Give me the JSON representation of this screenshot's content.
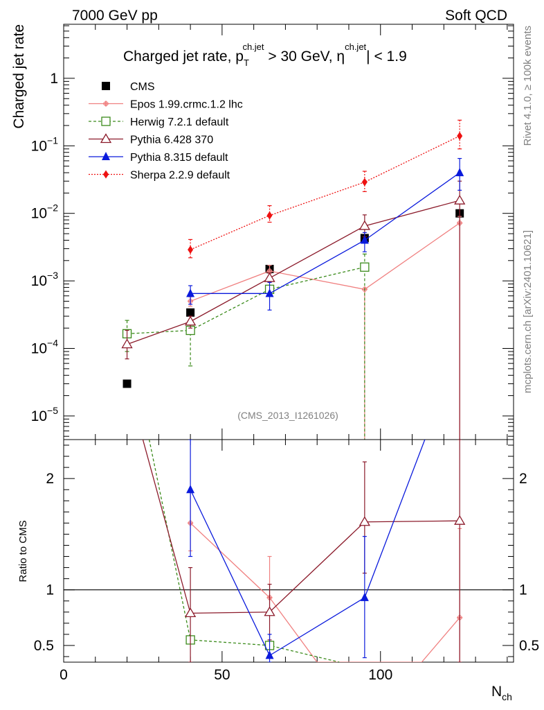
{
  "header": {
    "left": "7000 GeV pp",
    "right": "Soft QCD"
  },
  "side_labels": {
    "top": "Rivet 4.1.0, ≥ 100k events",
    "bottom": "mcplots.cern.ch [arXiv:2401.10621]"
  },
  "chart_data": [
    {
      "type": "line",
      "title": "Charged jet rate, p_T^ch.jet > 30 GeV, |η^ch.jet| < 1.9",
      "title_parts": {
        "a": "Charged jet rate, p",
        "sub": "T",
        "sup": "ch.jet",
        "b": " > 30 GeV,  ",
        "c": "η",
        "sup2": "ch.jet",
        "d": "| < 1.9"
      },
      "ylabel": "Charged jet rate",
      "yscale": "log",
      "xlim": [
        0,
        142
      ],
      "ylim_exponents": [
        -5.35,
        0.8
      ],
      "ytick_labels": [
        {
          "value": 1,
          "base": "1",
          "exp": ""
        },
        {
          "value": 0.1,
          "base": "10",
          "exp": "−1"
        },
        {
          "value": 0.01,
          "base": "10",
          "exp": "−2"
        },
        {
          "value": 0.001,
          "base": "10",
          "exp": "−3"
        },
        {
          "value": 0.0001,
          "base": "10",
          "exp": "−4"
        },
        {
          "value": 1e-05,
          "base": "10",
          "exp": "−5"
        }
      ],
      "watermark": "(CMS_2013_I1261026)",
      "legend_position": "top-left",
      "series": [
        {
          "name": "CMS",
          "color": "#000000",
          "marker": "square-filled",
          "dash": "none",
          "connect": false,
          "x": [
            20,
            40,
            65,
            95,
            125
          ],
          "y": [
            3e-05,
            0.00034,
            0.0015,
            0.0043,
            0.01
          ]
        },
        {
          "name": "Epos 1.99.crmc.1.2 lhc",
          "color": "#f08080",
          "marker": "cross",
          "dash": "none",
          "connect": true,
          "x": [
            40,
            65,
            95,
            125
          ],
          "y": [
            0.0005,
            0.0014,
            0.00075,
            0.0072
          ],
          "err_lo": [
            0.00042,
            0.0011,
            0.0,
            0.0
          ],
          "err_hi": [
            0.00058,
            0.0017,
            0.0,
            0.009
          ]
        },
        {
          "name": "Herwig 7.2.1 default",
          "color": "#3a8a1a",
          "marker": "square-open",
          "dash": "4,3",
          "connect": true,
          "x": [
            20,
            40,
            65,
            95
          ],
          "y": [
            0.000165,
            0.000185,
            0.00075,
            0.0016
          ],
          "err_lo": [
            9e-05,
            5.5e-05,
            0.00065,
            0.0
          ],
          "err_hi": [
            0.00026,
            0.0002,
            0.00085,
            0.0025
          ]
        },
        {
          "name": "Pythia 6.428 370",
          "color": "#8b1a2a",
          "marker": "triangle-open",
          "dash": "none",
          "connect": true,
          "x": [
            20,
            40,
            65,
            95,
            125
          ],
          "y": [
            0.000115,
            0.00025,
            0.0011,
            0.0065,
            0.0155
          ],
          "err_lo": [
            7e-05,
            0.0002,
            0.00095,
            0.0045,
            0.0
          ],
          "err_hi": [
            0.000185,
            0.0003,
            0.0013,
            0.0095,
            0.03
          ]
        },
        {
          "name": "Pythia 8.315 default",
          "color": "#0a1adc",
          "marker": "triangle-filled",
          "dash": "none",
          "connect": true,
          "x": [
            40,
            65,
            95,
            125
          ],
          "y": [
            0.00065,
            0.00065,
            0.004,
            0.04
          ],
          "err_lo": [
            0.00045,
            0.00037,
            0.0027,
            0.022
          ],
          "err_hi": [
            0.00085,
            0.00095,
            0.0052,
            0.065
          ]
        },
        {
          "name": "Sherpa 2.2.9 default",
          "color": "#ee1111",
          "marker": "diamond",
          "dash": "2,2",
          "connect": true,
          "x": [
            40,
            65,
            95,
            125
          ],
          "y": [
            0.0029,
            0.0093,
            0.029,
            0.14
          ],
          "err_lo": [
            0.0022,
            0.0074,
            0.021,
            0.09
          ],
          "err_hi": [
            0.0041,
            0.013,
            0.042,
            0.24
          ]
        }
      ]
    },
    {
      "type": "line",
      "ylabel": "Ratio to CMS",
      "xlabel": "N",
      "xlabel_sub": "ch",
      "xlim": [
        0,
        142
      ],
      "ylim": [
        0.35,
        2.35
      ],
      "xtick_labels": [
        {
          "value": 0,
          "label": "0"
        },
        {
          "value": 50,
          "label": "50"
        },
        {
          "value": 100,
          "label": "100"
        }
      ],
      "ytick_labels": [
        {
          "value": 0.5,
          "label": "0.5"
        },
        {
          "value": 1,
          "label": "1"
        },
        {
          "value": 2,
          "label": "2"
        }
      ],
      "reference_line": 1,
      "series": [
        {
          "name": "Epos 1.99.crmc.1.2 lhc",
          "color": "#f08080",
          "marker": "cross",
          "dash": "none",
          "x": [
            40,
            65,
            80,
            113,
            125
          ],
          "y": [
            1.6,
            0.93,
            0.35,
            0.35,
            0.75
          ],
          "markers": [
            true,
            true,
            false,
            false,
            true
          ],
          "err_lo": [
            1.35,
            0.8,
            null,
            null,
            0.35
          ],
          "err_hi": [
            1.9,
            1.3,
            null,
            null,
            1.55
          ]
        },
        {
          "name": "Herwig 7.2.1 default",
          "color": "#3a8a1a",
          "marker": "square-open",
          "dash": "4,3",
          "x": [
            27,
            40,
            65,
            87
          ],
          "y": [
            2.35,
            0.55,
            0.5,
            0.35
          ],
          "markers": [
            false,
            true,
            true,
            false
          ],
          "err_lo": [
            null,
            null,
            null,
            null
          ],
          "err_hi": [
            null,
            null,
            null,
            null
          ]
        },
        {
          "name": "Pythia 6.428 370",
          "color": "#8b1a2a",
          "marker": "triangle-open",
          "dash": "none",
          "x": [
            25,
            40,
            65,
            95,
            125
          ],
          "y": [
            2.35,
            0.79,
            0.8,
            1.61,
            1.62
          ],
          "markers": [
            false,
            true,
            true,
            true,
            true
          ],
          "err_lo": [
            null,
            0.35,
            0.55,
            1.15,
            0.35
          ],
          "err_hi": [
            null,
            1.2,
            1.05,
            2.15,
            2.35
          ]
        },
        {
          "name": "Pythia 8.315 default",
          "color": "#0a1adc",
          "marker": "triangle-filled",
          "dash": "none",
          "x": [
            40,
            65,
            95,
            114
          ],
          "y": [
            1.9,
            0.41,
            0.93,
            2.35
          ],
          "markers": [
            true,
            true,
            true,
            false
          ],
          "err_lo": [
            1.3,
            0.35,
            0.39,
            null
          ],
          "err_hi": [
            2.35,
            0.6,
            1.48,
            null
          ]
        }
      ]
    }
  ]
}
